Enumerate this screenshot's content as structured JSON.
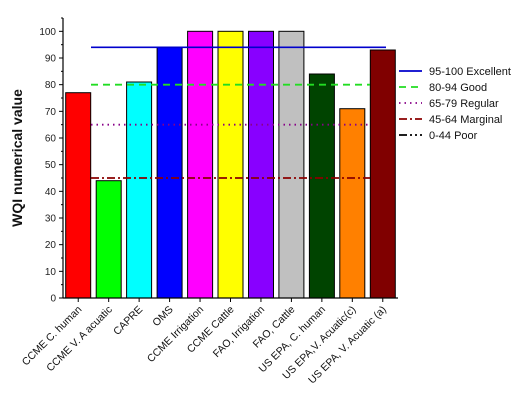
{
  "chart_data": {
    "type": "bar",
    "title": "",
    "xlabel": "",
    "ylabel": "WQI numerical value",
    "ylim": [
      0,
      105
    ],
    "yticks": [
      0,
      10,
      20,
      30,
      40,
      50,
      60,
      70,
      80,
      90,
      100
    ],
    "grid": false,
    "legend_position": "right",
    "categories": [
      "CCME C. human",
      "CCME V. A acuatic",
      "CAPRE",
      "OMS",
      "CCME Irrigation",
      "CCME Cattle",
      "FAO, Irrigation",
      "FAO, Cattle",
      "US EPA, C. human",
      "US EPA,V. Acuatic(c)",
      "US EPA, V. Acuatic (a)"
    ],
    "values": [
      77,
      44,
      81,
      94,
      100,
      100,
      100,
      100,
      84,
      71,
      93
    ],
    "bar_colors": [
      "#ff0000",
      "#00ff00",
      "#00ffff",
      "#0000ff",
      "#ff00ff",
      "#ffff00",
      "#8800ff",
      "#c0c0c0",
      "#004400",
      "#ff8000",
      "#800000"
    ],
    "reference_lines": [
      {
        "label": "95-100 Excellent",
        "value": 94,
        "color": "#0000cc",
        "style": "solid"
      },
      {
        "label": "80-94 Good",
        "value": 80,
        "color": "#22dd22",
        "style": "dash"
      },
      {
        "label": "65-79 Regular",
        "value": 65,
        "color": "#880088",
        "style": "dot"
      },
      {
        "label": "45-64 Marginal",
        "value": 45,
        "color": "#8b0000",
        "style": "dashdot"
      },
      {
        "label": "0-44 Poor",
        "value": 45,
        "color": "#000000",
        "style": "dashdotdot"
      }
    ]
  }
}
